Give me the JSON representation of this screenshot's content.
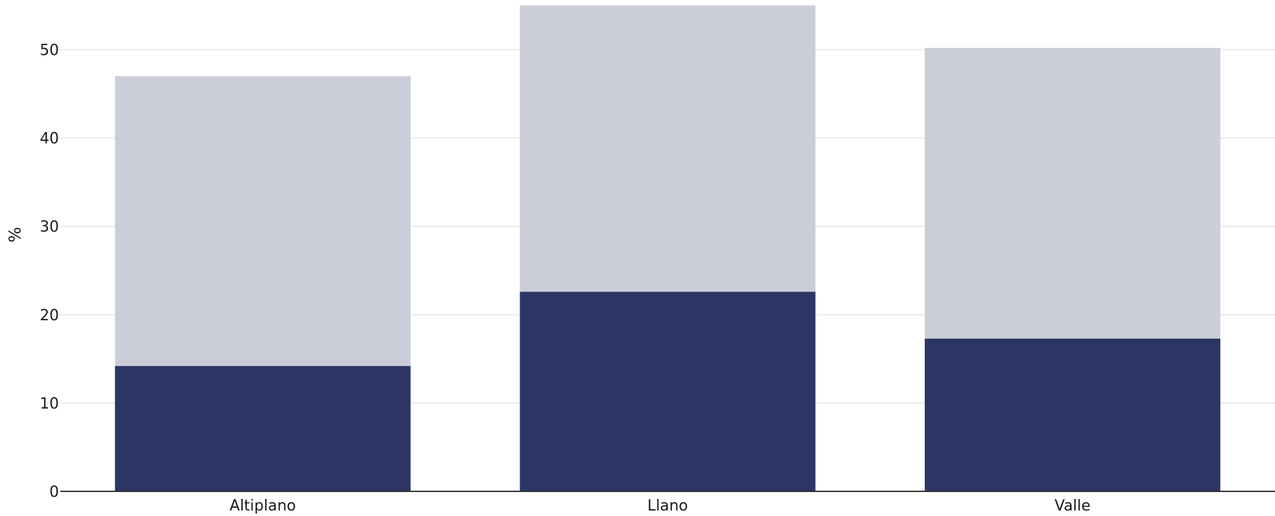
{
  "chart_data": {
    "type": "bar",
    "stacked": true,
    "categories": [
      "Altiplano",
      "Llano",
      "Valle"
    ],
    "series": [
      {
        "values": [
          14.2,
          22.6,
          17.3
        ],
        "color": "#2b3664"
      },
      {
        "values": [
          32.8,
          32.4,
          32.9
        ],
        "color": "#cbcdd9"
      }
    ],
    "ylabel": "%",
    "xlabel": "",
    "ylim": [
      0,
      55
    ],
    "yticks": [
      0,
      10,
      20,
      30,
      40,
      50
    ],
    "grid": true,
    "legend": "none"
  }
}
